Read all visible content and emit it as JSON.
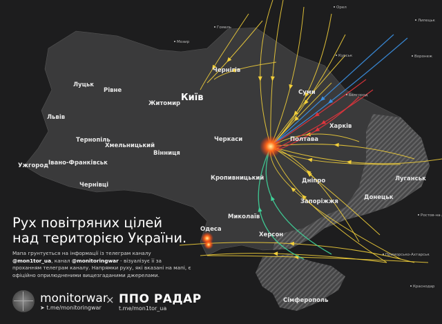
{
  "title_line1": "Рух повітряних цілей",
  "title_line2": "над територією України.",
  "description": {
    "part1": "Мапа грунтується на інформації із телеграм каналу ",
    "channel1": "@mon1tor_ua",
    "part2": ", канал ",
    "channel2": "@monitoringwar",
    "part3": " - візуалізує її за проханням телеграм каналу. Напрямки руху, які вказані на мапі, є офіційно оприлюдненими вищезгаданими джерелами."
  },
  "brand_monitorwar": {
    "name": "monitorwar",
    "link": "t.me/monitoringwar",
    "icon": "telegram-icon"
  },
  "cross": "×",
  "brand_ppo": {
    "name": "ППО РАДАР",
    "link": "t.me/mon1tor_ua"
  },
  "colors": {
    "ukraine": "#3b3b3c",
    "occupied_hatch": "#6a6a6a",
    "drone_routes": "#f2cf3a",
    "missile_blue": "#3b8fe0",
    "missile_red": "#e0343c",
    "missile_green": "#3fd39a",
    "explosion": "#ff5a1a"
  },
  "cities_major": {
    "kyiv": "Київ"
  },
  "cities": {
    "lutsk": "Луцьк",
    "rivne": "Рівне",
    "zhytomyr": "Житомир",
    "chernihiv": "Чернігів",
    "sumy": "Суми",
    "kharkiv": "Харків",
    "poltava": "Полтава",
    "cherkasy": "Черкаси",
    "lviv": "Львів",
    "ternopil": "Тернопіль",
    "khmelnytskyi": "Хмельницький",
    "vinnytsia": "Вінниця",
    "uzhhorod": "Ужгород",
    "ivano_frankivsk": "Івано-Франківськ",
    "chernivtsi": "Чернівці",
    "kropyvnytskyi": "Кропивницький",
    "dnipro": "Дніпро",
    "luhansk": "Луганськ",
    "donetsk": "Донецьк",
    "zaporizhzhia": "Запоріжжя",
    "mykolaiv": "Миколаїв",
    "kherson": "Херсон",
    "odesa": "Одеса",
    "simferopol": "Сімферополь"
  },
  "cities_foreign": {
    "mozyr": "Мозир",
    "gomel": "Гомель",
    "orel": "Орел",
    "lipetsk": "Липецьк",
    "kursk": "Курськ",
    "voronezh": "Воронеж",
    "belgorod": "Белгород",
    "rostov": "Ростов-на-Дону",
    "primorsko": "Приморсько-Ахтарськ",
    "krasnodar": "Краснодар"
  }
}
